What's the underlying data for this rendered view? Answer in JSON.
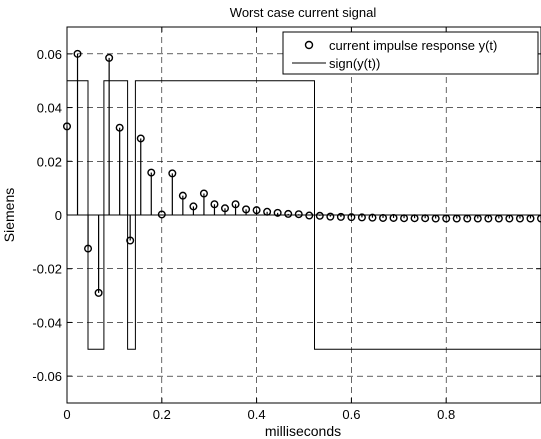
{
  "chart_data": {
    "type": "line",
    "title": "Worst case current signal",
    "xlabel": "milliseconds",
    "ylabel": "Siemens",
    "xlim": [
      0,
      1
    ],
    "ylim": [
      -0.07,
      0.07
    ],
    "grid": true,
    "grid_style": "dashed",
    "legend_position": "top-right",
    "x_ticks": [
      0,
      0.2,
      0.4,
      0.6,
      0.8
    ],
    "x_tick_labels": [
      "0",
      "0.2",
      "0.4",
      "0.6",
      "0.8"
    ],
    "y_ticks": [
      0.06,
      0.04,
      0.02,
      0,
      -0.02,
      -0.04,
      -0.06
    ],
    "y_tick_labels": [
      "0.06",
      "0.04",
      "0.02",
      "0",
      "-0.02",
      "-0.04",
      "-0.06"
    ],
    "legend": [
      "current impulse response y(t)",
      "sign(y(t))"
    ],
    "series": [
      {
        "name": "current impulse response y(t)",
        "kind": "stem",
        "marker": "circle",
        "color": "#000000",
        "x": [
          0.0,
          0.0222,
          0.0444,
          0.0667,
          0.0889,
          0.1111,
          0.1333,
          0.1556,
          0.1778,
          0.2,
          0.2222,
          0.2444,
          0.2667,
          0.2889,
          0.3111,
          0.3333,
          0.3556,
          0.3778,
          0.4,
          0.4222,
          0.4444,
          0.4667,
          0.4889,
          0.5111,
          0.5333,
          0.5556,
          0.5778,
          0.6,
          0.6222,
          0.6444,
          0.6667,
          0.6889,
          0.7111,
          0.7333,
          0.7556,
          0.7778,
          0.8,
          0.8222,
          0.8444,
          0.8667,
          0.8889,
          0.9111,
          0.9333,
          0.9556,
          0.9778,
          1.0
        ],
        "y": [
          0.033,
          0.06,
          -0.0125,
          -0.029,
          0.0585,
          0.0325,
          -0.0095,
          0.0285,
          0.0158,
          0.0002,
          0.0155,
          0.0072,
          0.0032,
          0.008,
          0.004,
          0.0025,
          0.004,
          0.0021,
          0.0018,
          0.0012,
          0.0008,
          0.0004,
          0.0003,
          -0.0002,
          -0.0003,
          -0.0006,
          -0.0007,
          -0.0008,
          -0.0009,
          -0.001,
          -0.0011,
          -0.0011,
          -0.0012,
          -0.0012,
          -0.0012,
          -0.0013,
          -0.0013,
          -0.0013,
          -0.0013,
          -0.0013,
          -0.0013,
          -0.0013,
          -0.0013,
          -0.0013,
          -0.0013,
          -0.0013
        ]
      },
      {
        "name": "sign(y(t))",
        "kind": "step",
        "color": "#000000",
        "points": [
          [
            0.0,
            0.05
          ],
          [
            0.0444,
            0.05
          ],
          [
            0.0444,
            -0.05
          ],
          [
            0.0778,
            -0.05
          ],
          [
            0.0778,
            0.05
          ],
          [
            0.1278,
            0.05
          ],
          [
            0.1278,
            -0.05
          ],
          [
            0.1444,
            -0.05
          ],
          [
            0.1444,
            0.05
          ],
          [
            0.5222,
            0.05
          ],
          [
            0.5222,
            -0.05
          ],
          [
            1.0,
            -0.05
          ]
        ]
      }
    ]
  }
}
